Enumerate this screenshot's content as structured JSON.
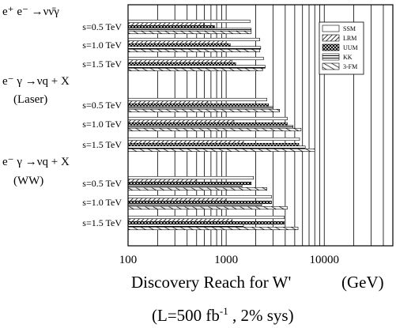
{
  "chart_data": {
    "type": "bar",
    "orientation": "horizontal",
    "x_scale": "log",
    "xlim": [
      100,
      50000
    ],
    "grid": "vertical",
    "legend_position": "top-right",
    "xlabel": "Discovery Reach for W'",
    "xlabel_unit": "(GeV)",
    "subtitle": "(L=500 fb⁻¹, 2% sys)",
    "x_ticks": [
      "100",
      "1000",
      "10000"
    ],
    "series": [
      {
        "name": "SSM",
        "pattern": "white"
      },
      {
        "name": "LRM",
        "pattern": "diagonal"
      },
      {
        "name": "UUM",
        "pattern": "crosshatch"
      },
      {
        "name": "KK",
        "pattern": "horizontal"
      },
      {
        "name": "3-FM",
        "pattern": "slanted"
      }
    ],
    "groups": [
      {
        "title": "e⁺ e⁻ →νν̄γ",
        "title_line2": "",
        "rows": [
          {
            "label": "s=0.5 TeV",
            "values": [
              1750,
              590,
              760,
              1800,
              1800
            ]
          },
          {
            "label": "s=1.0 TeV",
            "values": [
              2200,
              1000,
              1100,
              2250,
              2200
            ]
          },
          {
            "label": "s=1.5 TeV",
            "values": [
              2400,
              1150,
              1250,
              2500,
              2350
            ]
          }
        ]
      },
      {
        "title": "e⁻ γ →νq + X",
        "title_line2": "(Laser)",
        "rows": [
          {
            "label": "s=0.5 TeV",
            "values": [
              2600,
              650,
              2700,
              3000,
              3500
            ]
          },
          {
            "label": "s=1.0 TeV",
            "values": [
              4200,
              1200,
              4200,
              4800,
              5800
            ]
          },
          {
            "label": "s=1.5 TeV",
            "values": [
              5600,
              1500,
              5500,
              6400,
              8000
            ]
          }
        ]
      },
      {
        "title": "e⁻ γ →νq + X",
        "title_line2": "(WW)",
        "rows": [
          {
            "label": "s=0.5 TeV",
            "values": [
              1900,
              500,
              1800,
              1450,
              2600
            ]
          },
          {
            "label": "s=1.0 TeV",
            "values": [
              2900,
              1000,
              2900,
              2300,
              4200
            ]
          },
          {
            "label": "s=1.5 TeV",
            "values": [
              3900,
              1150,
              3900,
              1500,
              5400
            ]
          }
        ]
      }
    ]
  }
}
